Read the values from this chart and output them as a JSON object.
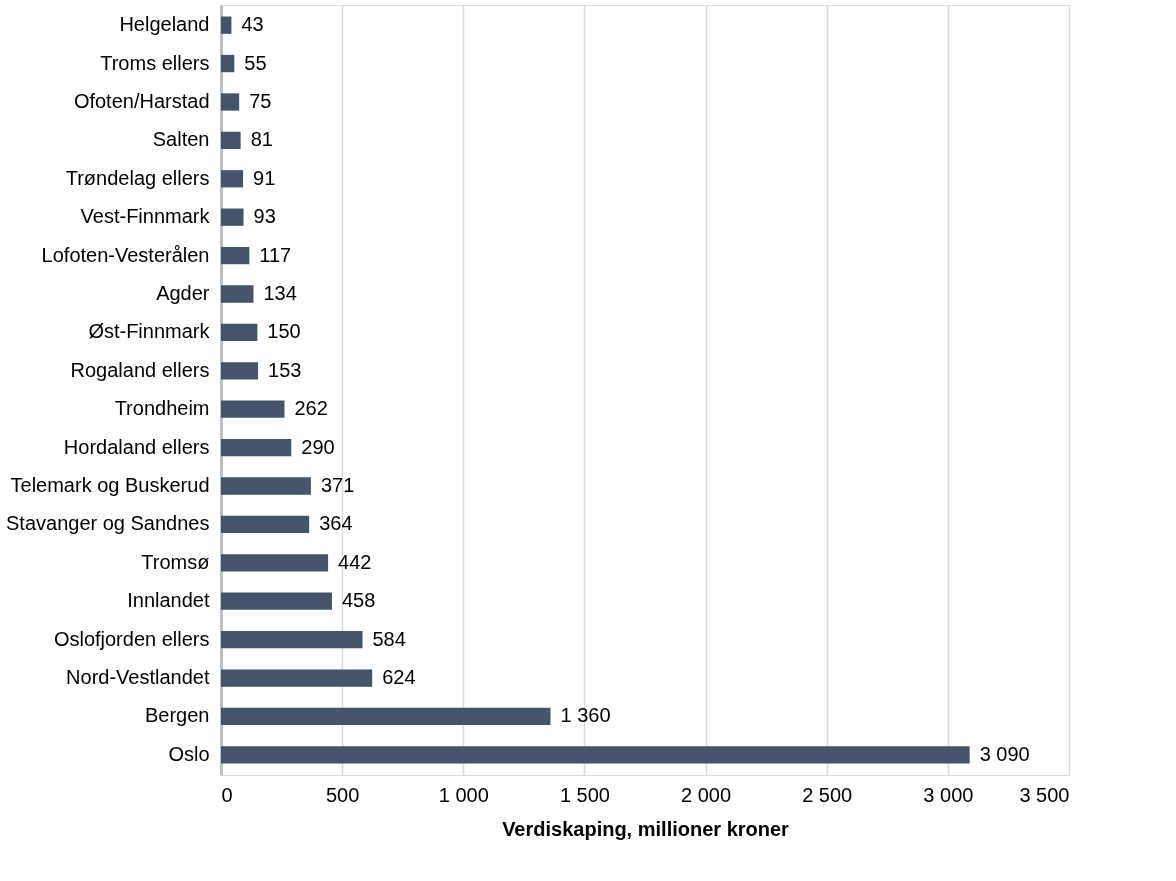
{
  "chart_data": {
    "type": "bar",
    "orientation": "horizontal",
    "xlabel": "Verdiskaping, millioner kroner",
    "categories": [
      "Helgeland",
      "Troms ellers",
      "Ofoten/Harstad",
      "Salten",
      "Trøndelag ellers",
      "Vest-Finnmark",
      "Lofoten-Vesterålen",
      "Agder",
      "Øst-Finnmark",
      "Rogaland ellers",
      "Trondheim",
      "Hordaland ellers",
      "Telemark og Buskerud",
      "Stavanger og Sandnes",
      "Tromsø",
      "Innlandet",
      "Oslofjorden ellers",
      "Nord-Vestlandet",
      "Bergen",
      "Oslo"
    ],
    "values": [
      43,
      55,
      75,
      81,
      91,
      93,
      117,
      134,
      150,
      153,
      262,
      290,
      371,
      364,
      442,
      458,
      584,
      624,
      1360,
      3090
    ],
    "value_labels": [
      "43",
      "55",
      "75",
      "81",
      "91",
      "93",
      "117",
      "134",
      "150",
      "153",
      "262",
      "290",
      "371",
      "364",
      "442",
      "458",
      "584",
      "624",
      "1 360",
      "3 090"
    ],
    "color": "#44546a",
    "xlim": [
      0,
      3500
    ],
    "xticks": [
      0,
      500,
      {
        "value": 1000,
        "label": "1 000"
      },
      {
        "value": 1500,
        "label": "1 500"
      },
      {
        "value": 2000,
        "label": "2 000"
      },
      {
        "value": 2500,
        "label": "2 500"
      },
      {
        "value": 3000,
        "label": "3 000"
      },
      {
        "value": 3500,
        "label": "3 500"
      }
    ],
    "grid": "x"
  }
}
